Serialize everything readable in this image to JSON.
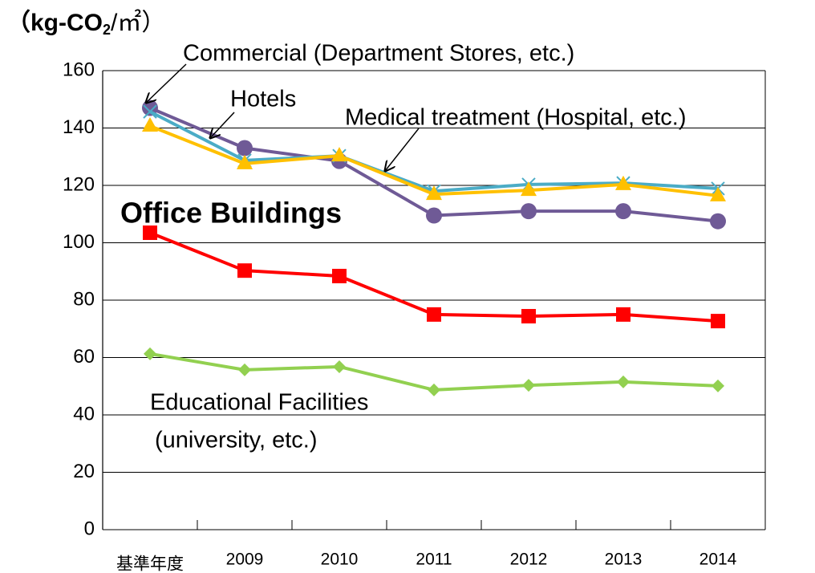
{
  "chart_data": {
    "type": "line",
    "y_label_parts": [
      "（kg-CO",
      "2",
      "/㎡）"
    ],
    "categories": [
      "基準年度",
      "2009",
      "2010",
      "2011",
      "2012",
      "2013",
      "2014"
    ],
    "ylim": [
      0,
      160
    ],
    "yticks": [
      0,
      20,
      40,
      60,
      80,
      100,
      120,
      140,
      160
    ],
    "grid": true,
    "series": [
      {
        "name": "Commercial (Department Stores, etc.)",
        "color": "#6f5a96",
        "marker": "circle",
        "values": [
          147,
          133,
          128.5,
          109.5,
          111,
          111,
          107.5
        ]
      },
      {
        "name": "Hotels",
        "color": "#4bacc6",
        "marker": "x",
        "values": [
          145.7,
          128.7,
          130.3,
          118,
          120.3,
          120.8,
          118.9
        ]
      },
      {
        "name": "Medical treatment (Hospital, etc.)",
        "color": "#ffc000",
        "marker": "triangle",
        "values": [
          140.7,
          127.6,
          130.3,
          116.9,
          118.3,
          120.3,
          116.4
        ]
      },
      {
        "name": "Office Buildings",
        "color": "#ff0000",
        "marker": "square",
        "values": [
          103.5,
          90.3,
          88.4,
          75,
          74.4,
          75,
          72.7
        ]
      },
      {
        "name": [
          "Educational Facilities",
          "(university, etc.)"
        ],
        "color": "#92d050",
        "marker": "diamond",
        "values": [
          61.3,
          55.7,
          56.8,
          48.7,
          50.3,
          51.5,
          50.1
        ]
      }
    ]
  }
}
